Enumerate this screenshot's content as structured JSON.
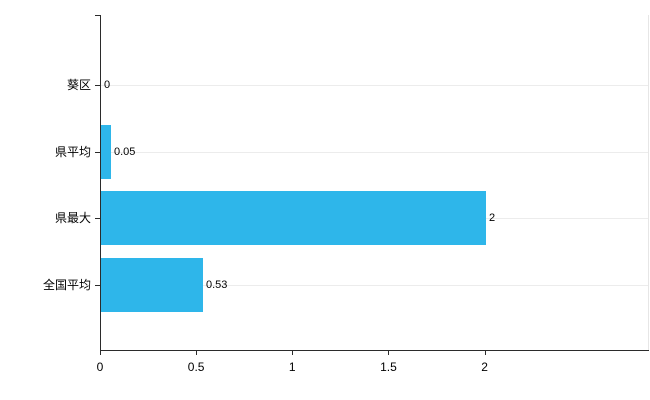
{
  "chart_data": {
    "type": "bar",
    "orientation": "horizontal",
    "title": "",
    "xlabel": "",
    "ylabel": "",
    "categories": [
      "葵区",
      "県平均",
      "県最大",
      "全国平均"
    ],
    "values": [
      0,
      0.05,
      2,
      0.53
    ],
    "value_labels": [
      "0",
      "0.05",
      "2",
      "0.53"
    ],
    "x_ticks": [
      0,
      0.5,
      1,
      1.5,
      2
    ],
    "x_tick_labels": [
      "0",
      "0.5",
      "1",
      "1.5",
      "2"
    ],
    "xlim": [
      0,
      2.85
    ],
    "grid": "horizontal-light",
    "legend": "none",
    "bar_color": "#2EB6EA",
    "axis_color": "#2b2b2b"
  }
}
